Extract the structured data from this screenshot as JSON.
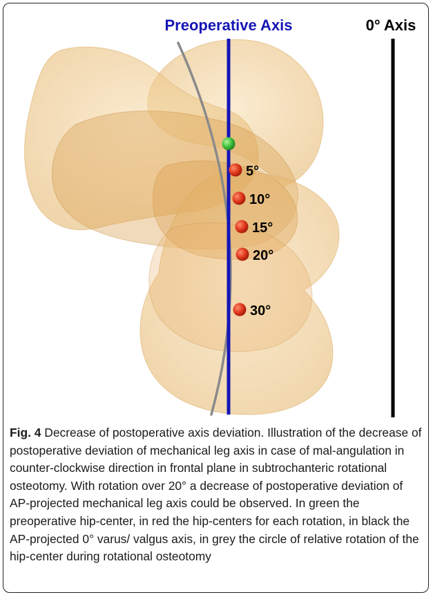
{
  "figure": {
    "preoperative_axis_label": "Preoperative Axis",
    "zero_axis_label": "0° Axis",
    "rotation_labels": [
      "5°",
      "10°",
      "15°",
      "20°",
      "30°"
    ],
    "colors": {
      "preoperative_axis": "#1515b5",
      "zero_axis": "#000000",
      "rotation_circle": "#8a8a8a",
      "preoperative_hip_center": "#3fc23f",
      "rotated_hip_centers": "#e03a1e",
      "bone": "#e8c27a"
    }
  },
  "caption": {
    "label": "Fig. 4",
    "text": "Decrease of postoperative axis deviation. Illustration of the decrease of postoperative deviation of mechanical leg axis in case of mal-angulation in counter-clockwise direction in frontal plane in subtrochanteric rotational osteotomy. With rotation over 20° a decrease of postoperative deviation of AP-projected mechanical leg axis could be observed. In green the preoperative hip-center, in red the hip-centers for each rotation, in black the AP-projected 0° varus/ valgus axis, in grey the circle of relative rotation of the hip-center during rotational osteotomy"
  }
}
